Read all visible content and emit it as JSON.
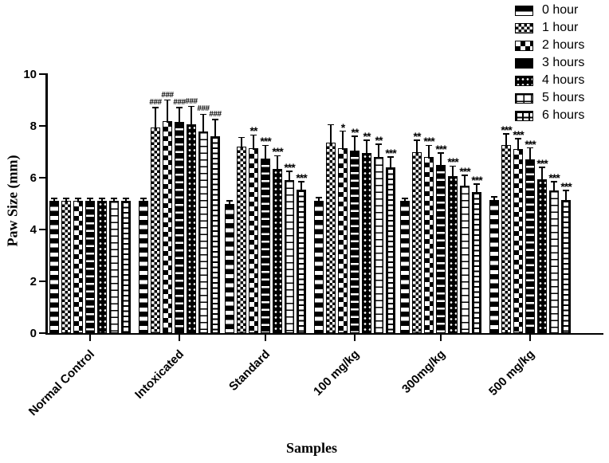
{
  "figure": {
    "y_axis_label": "Paw Size (mm)",
    "x_axis_label": "Samples",
    "legend_entries": [
      "0 hour",
      "1 hour",
      "2 hours",
      "3 hours",
      "4 hours",
      "5 hours",
      "6 hours"
    ]
  },
  "chart_data": {
    "type": "bar",
    "title": "",
    "xlabel": "Samples",
    "ylabel": "Paw Size (mm)",
    "ylim": [
      0,
      10
    ],
    "yticks": [
      0,
      2,
      4,
      6,
      8,
      10
    ],
    "grid": false,
    "legend_position": "top-right",
    "bar_style": "black-and-white hatch patterns with upper SEM error bars",
    "categories": [
      "Normal Control",
      "Intoxicated",
      "Standard",
      "100 mg/kg",
      "300mg/kg",
      "500 mg/kg"
    ],
    "series": [
      {
        "name": "0 hour",
        "pattern": "thick-horizontal-stripes",
        "values": [
          5.1,
          5.1,
          5.0,
          5.1,
          5.1,
          5.15
        ],
        "errors": [
          0.1,
          0.1,
          0.1,
          0.12,
          0.1,
          0.12
        ],
        "sig": [
          "",
          "",
          "",
          "",
          "",
          ""
        ]
      },
      {
        "name": "1 hour",
        "pattern": "fine-checkerboard",
        "values": [
          5.1,
          7.95,
          7.2,
          7.35,
          7.0,
          7.25
        ],
        "errors": [
          0.1,
          0.75,
          0.35,
          0.7,
          0.45,
          0.45
        ],
        "sig": [
          "",
          "###",
          "",
          "",
          "**",
          "***"
        ]
      },
      {
        "name": "2 hours",
        "pattern": "coarse-checkerboard",
        "values": [
          5.1,
          8.2,
          7.15,
          7.15,
          6.8,
          7.1
        ],
        "errors": [
          0.1,
          0.8,
          0.5,
          0.65,
          0.45,
          0.4
        ],
        "sig": [
          "",
          "###",
          "**",
          "*",
          "***",
          "***"
        ]
      },
      {
        "name": "3 hours",
        "pattern": "black-with-thin-white-stripes",
        "values": [
          5.1,
          8.15,
          6.75,
          7.05,
          6.5,
          6.7
        ],
        "errors": [
          0.1,
          0.55,
          0.5,
          0.55,
          0.45,
          0.45
        ],
        "sig": [
          "",
          "###",
          "***",
          "**",
          "***",
          "***"
        ]
      },
      {
        "name": "4 hours",
        "pattern": "white-dots-on-black",
        "values": [
          5.1,
          8.05,
          6.35,
          6.95,
          6.05,
          5.95
        ],
        "errors": [
          0.1,
          0.7,
          0.5,
          0.5,
          0.4,
          0.45
        ],
        "sig": [
          "",
          "###",
          "***",
          "**",
          "***",
          "***"
        ]
      },
      {
        "name": "5 hours",
        "pattern": "white-bricks",
        "values": [
          5.1,
          7.8,
          5.9,
          6.8,
          5.7,
          5.5
        ],
        "errors": [
          0.1,
          0.65,
          0.35,
          0.5,
          0.4,
          0.35
        ],
        "sig": [
          "",
          "###",
          "***",
          "**",
          "***",
          "***"
        ]
      },
      {
        "name": "6 hours",
        "pattern": "dense-black-bricks",
        "values": [
          5.1,
          7.6,
          5.55,
          6.4,
          5.45,
          5.15
        ],
        "errors": [
          0.1,
          0.65,
          0.3,
          0.4,
          0.3,
          0.35
        ],
        "sig": [
          "",
          "###",
          "***",
          "***",
          "***",
          "***"
        ]
      }
    ],
    "colors": {
      "foreground": "#000000",
      "background": "#ffffff"
    }
  }
}
